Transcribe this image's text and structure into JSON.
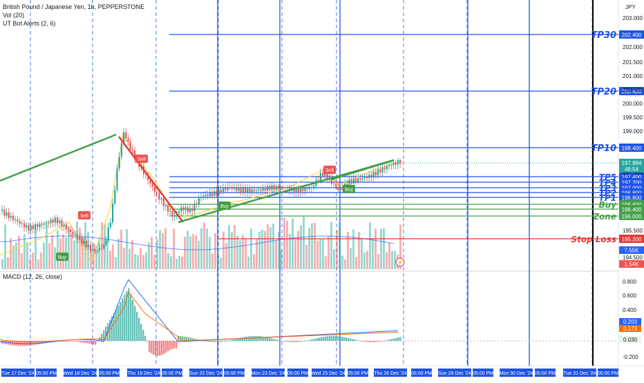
{
  "header": {
    "symbol_title": "British Pound / Japanese Yen, 1h, PEPPERSTONE",
    "vol_label": "Vol (20)",
    "ut_label": "UT Bot Alerts (2, 6)",
    "currency": "JPY"
  },
  "macd_panel": {
    "label": "MACD (12, 26, close)",
    "ticks": [
      "0.800",
      "0.600",
      "0.400",
      "0.200",
      "-0.200"
    ],
    "badges": [
      {
        "text": "0.203",
        "color": "#2962ff"
      },
      {
        "text": "0.173",
        "color": "#ff6d00"
      },
      {
        "text": "0.030",
        "color": "#e8f5e9"
      }
    ]
  },
  "chart_data": {
    "type": "line",
    "title": "British Pound / Japanese Yen, 1h, PEPPERSTONE",
    "y_axis_ticks": [
      "203.000",
      "202.000",
      "201.500",
      "201.000",
      "200.500",
      "200.000",
      "199.500",
      "199.000",
      "198.000",
      "197.500",
      "195.500",
      "194.500"
    ],
    "ylim": [
      194.2,
      203.3
    ],
    "x_axis_ticks": [
      "Tue 17 Dec '24",
      "05:00 PM",
      "Wed 18 Dec '24",
      "05:00 PM",
      "Thu 19 Dec '24",
      "05:00 PM",
      "Sun 22 Dec '24",
      "05:00 PM",
      "Mon 23 Dec '24",
      "05:00 PM",
      "Wed 25 Dec '24",
      "05:00 PM",
      "Thu 26 Dec '24",
      "05:00 PM",
      "Sun 29 Dec '24",
      "05:00 PM",
      "Mon 30 Dec '24",
      "05:00 PM",
      "Tue 31 Dec '24",
      "05:00 PM"
    ],
    "levels": [
      {
        "label": "TP30",
        "price": "202.400",
        "color": "#1e53e5"
      },
      {
        "label": "TP20",
        "price": "200.400",
        "color": "#1e53e5"
      },
      {
        "label": "TP10",
        "price": "198.400",
        "color": "#1e53e5"
      },
      {
        "label": "TP5",
        "price": "197.400",
        "color": "#1e53e5"
      },
      {
        "label": "TP4",
        "price": "197.200",
        "color": "#1e53e5"
      },
      {
        "label": "TP3",
        "price": "197.000",
        "color": "#1e53e5"
      },
      {
        "label": "TP2",
        "price": "196.800",
        "color": "#1e53e5"
      },
      {
        "label": "TP1",
        "price": "196.800",
        "color": "#1e53e5"
      },
      {
        "label": "Buy",
        "price": "196.600",
        "color": "#43a047"
      },
      {
        "label": "",
        "price": "196.400",
        "color": "#43a047"
      },
      {
        "label": "Zone",
        "price": "196.000",
        "color": "#43a047"
      },
      {
        "label": "Stop Loss",
        "price": "195.200",
        "color": "#e53935"
      }
    ],
    "current": {
      "price": "197.884",
      "countdown": "46:54"
    },
    "volume_badges": [
      "7.55K",
      "1.54K"
    ],
    "price_path": [
      {
        "x": 0,
        "y": 196.2
      },
      {
        "x": 40,
        "y": 195.6
      },
      {
        "x": 80,
        "y": 195.9
      },
      {
        "x": 110,
        "y": 195.3
      },
      {
        "x": 135,
        "y": 194.8
      },
      {
        "x": 150,
        "y": 195.0
      },
      {
        "x": 160,
        "y": 196.0
      },
      {
        "x": 170,
        "y": 197.9
      },
      {
        "x": 178,
        "y": 198.9
      },
      {
        "x": 185,
        "y": 198.5
      },
      {
        "x": 195,
        "y": 198.0
      },
      {
        "x": 210,
        "y": 197.4
      },
      {
        "x": 225,
        "y": 196.8
      },
      {
        "x": 240,
        "y": 196.3
      },
      {
        "x": 250,
        "y": 196.0
      },
      {
        "x": 262,
        "y": 196.3
      },
      {
        "x": 275,
        "y": 196.2
      },
      {
        "x": 290,
        "y": 196.7
      },
      {
        "x": 310,
        "y": 196.8
      },
      {
        "x": 330,
        "y": 197.0
      },
      {
        "x": 350,
        "y": 196.9
      },
      {
        "x": 370,
        "y": 196.9
      },
      {
        "x": 390,
        "y": 197.0
      },
      {
        "x": 410,
        "y": 197.0
      },
      {
        "x": 430,
        "y": 196.9
      },
      {
        "x": 450,
        "y": 197.0
      },
      {
        "x": 465,
        "y": 197.5
      },
      {
        "x": 478,
        "y": 197.2
      },
      {
        "x": 490,
        "y": 196.9
      },
      {
        "x": 505,
        "y": 197.2
      },
      {
        "x": 520,
        "y": 197.3
      },
      {
        "x": 535,
        "y": 197.4
      },
      {
        "x": 550,
        "y": 197.6
      },
      {
        "x": 565,
        "y": 197.8
      },
      {
        "x": 578,
        "y": 197.9
      }
    ],
    "signals": [
      {
        "label": "Sell",
        "kind": "sell",
        "x": 122,
        "y": 196.5
      },
      {
        "label": "Buy",
        "kind": "buy",
        "x": 90,
        "y": 194.8
      },
      {
        "label": "Sell",
        "kind": "sell",
        "x": 205,
        "y": 198.7
      },
      {
        "label": "Buy",
        "kind": "buy",
        "x": 325,
        "y": 196.6
      },
      {
        "label": "Sell",
        "kind": "sell",
        "x": 477,
        "y": 197.6
      },
      {
        "label": "Buy",
        "kind": "buy",
        "x": 505,
        "y": 196.9
      }
    ]
  },
  "colors": {
    "up": "#26a69a",
    "down": "#ef5350",
    "blue_line": "#1e53e5",
    "trend": "#43a047",
    "yellow": "#f5d742",
    "red_trend": "#e53935"
  }
}
